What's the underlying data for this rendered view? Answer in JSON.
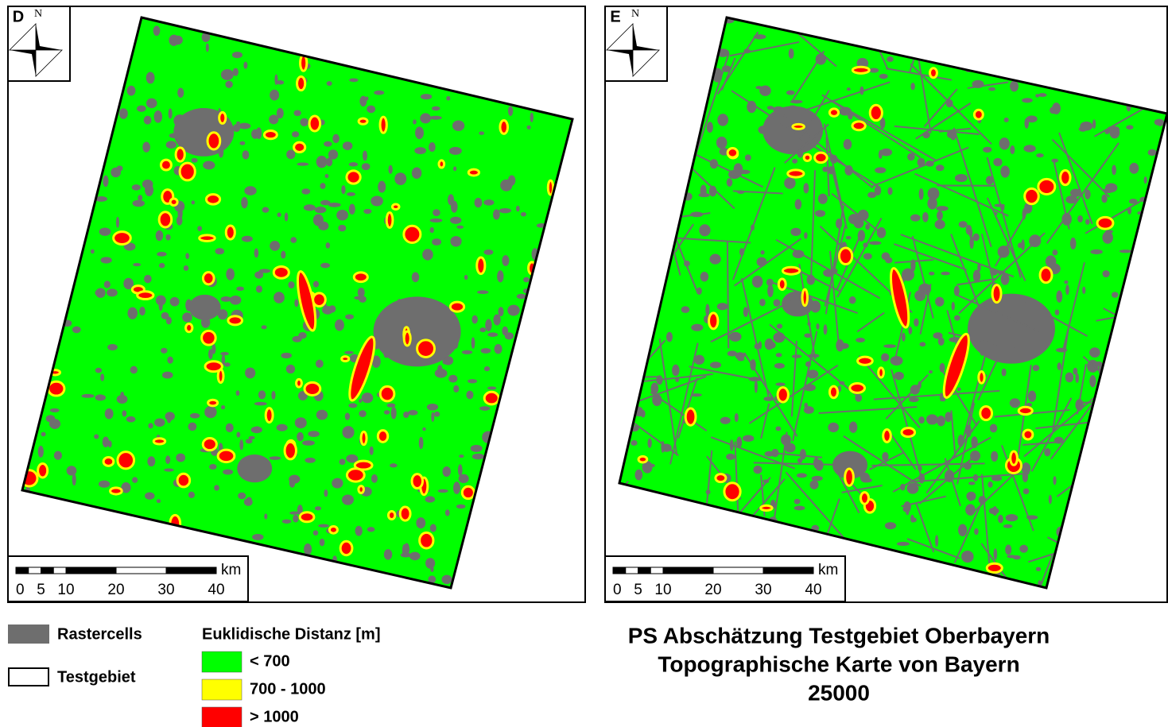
{
  "panels": [
    {
      "label": "D",
      "north": "N",
      "scale": {
        "unit": "km",
        "ticks": [
          0,
          5,
          10,
          20,
          30,
          40
        ]
      }
    },
    {
      "label": "E",
      "north": "N",
      "scale": {
        "unit": "km",
        "ticks": [
          0,
          5,
          10,
          20,
          30,
          40
        ]
      }
    }
  ],
  "legend": {
    "rastercells": "Rastercells",
    "rastercells_color": "#6e6e6e",
    "testgebiet": "Testgebiet",
    "distance_title": "Euklidische Distanz [m]",
    "classes": [
      {
        "label": "< 700",
        "color": "#00ff00"
      },
      {
        "label": "700 - 1000",
        "color": "#ffff00"
      },
      {
        "label": "> 1000",
        "color": "#ff0000"
      }
    ]
  },
  "title": {
    "lines": [
      "PS Abschätzung Testgebiet Oberbayern",
      "Topographische Karte von Bayern",
      "25000"
    ]
  }
}
